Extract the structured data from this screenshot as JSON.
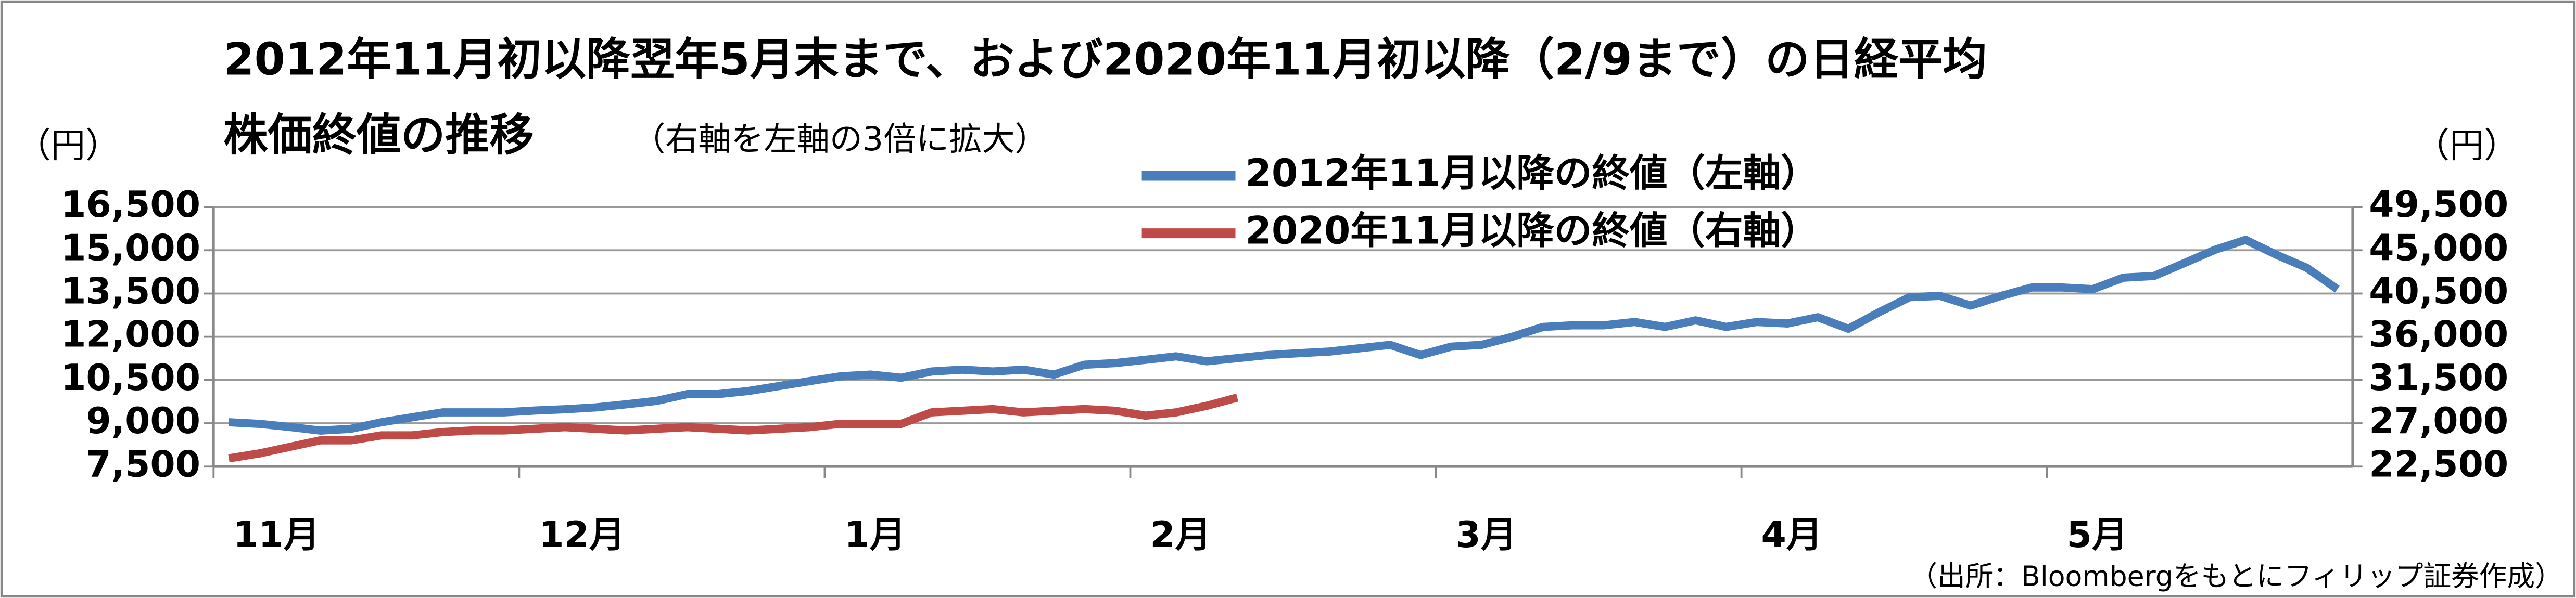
{
  "chart_data": {
    "type": "line",
    "title": [
      "2012年11月初以降翌年5月末まで、および2020年11月初以降（2/9まで）の日経平均",
      "株価終値の推移"
    ],
    "subtitle": "（右軸を左軸の3倍に拡大）",
    "y_unit": "（円）",
    "y2_unit": "（円）",
    "source": "（出所：Bloombergをもとにフィリップ証券作成）",
    "categories": [
      "11月",
      null,
      null,
      null,
      null,
      null,
      null,
      null,
      null,
      null,
      "12月",
      null,
      null,
      null,
      null,
      null,
      null,
      null,
      null,
      null,
      "1月",
      null,
      null,
      null,
      null,
      null,
      null,
      null,
      null,
      null,
      "2月",
      null,
      null,
      null,
      null,
      null,
      null,
      null,
      null,
      null,
      "3月",
      null,
      null,
      null,
      null,
      null,
      null,
      null,
      null,
      null,
      "4月",
      null,
      null,
      null,
      null,
      null,
      null,
      null,
      null,
      null,
      "5月",
      null,
      null,
      null,
      null,
      null,
      null,
      null,
      null,
      null
    ],
    "series": [
      {
        "name": "2012年11月以降の終値（左軸）",
        "color": "#4a7ebb",
        "axis": "y",
        "values": [
          9040,
          8980,
          8870,
          8750,
          8810,
          9040,
          9210,
          9380,
          9380,
          9380,
          9440,
          9490,
          9550,
          9660,
          9780,
          10010,
          10010,
          10120,
          10290,
          10460,
          10630,
          10690,
          10580,
          10800,
          10860,
          10800,
          10860,
          10690,
          11030,
          11090,
          11200,
          11320,
          11150,
          11260,
          11370,
          11430,
          11490,
          11600,
          11720,
          11370,
          11660,
          11720,
          12000,
          12340,
          12400,
          12400,
          12510,
          12340,
          12570,
          12340,
          12510,
          12460,
          12680,
          12280,
          12850,
          13370,
          13420,
          13080,
          13420,
          13710,
          13710,
          13650,
          14050,
          14110,
          14560,
          15020,
          15360,
          14850,
          14390,
          13650
        ]
      },
      {
        "name": "2020年11月以降の終値（右軸）",
        "color": "#be4b48",
        "axis": "y2",
        "values": [
          23350,
          23870,
          24550,
          25230,
          25230,
          25750,
          25750,
          26090,
          26260,
          26260,
          26430,
          26600,
          26430,
          26260,
          26430,
          26600,
          26430,
          26260,
          26430,
          26600,
          26940,
          26940,
          26940,
          28140,
          28310,
          28480,
          28140,
          28310,
          28480,
          28310,
          27800,
          28140,
          28820,
          29680,
          null,
          null,
          null,
          null,
          null,
          null,
          null,
          null,
          null,
          null,
          null,
          null,
          null,
          null,
          null,
          null,
          null,
          null,
          null,
          null,
          null,
          null,
          null,
          null,
          null,
          null,
          null,
          null,
          null,
          null,
          null,
          null,
          null,
          null,
          null,
          null
        ]
      }
    ],
    "ylim": [
      7500,
      16500
    ],
    "yticks": [
      {
        "value": 7500,
        "label": "7,500"
      },
      {
        "value": 9000,
        "label": "9,000"
      },
      {
        "value": 10500,
        "label": "10,500"
      },
      {
        "value": 12000,
        "label": "12,000"
      },
      {
        "value": 13500,
        "label": "13,500"
      },
      {
        "value": 15000,
        "label": "15,000"
      },
      {
        "value": 16500,
        "label": "16,500"
      }
    ],
    "y2lim": [
      22500,
      49500
    ],
    "y2ticks": [
      {
        "value": 22500,
        "label": "22,500"
      },
      {
        "value": 27000,
        "label": "27,000"
      },
      {
        "value": 31500,
        "label": "31,500"
      },
      {
        "value": 36000,
        "label": "36,000"
      },
      {
        "value": 40500,
        "label": "40,500"
      },
      {
        "value": 45000,
        "label": "45,000"
      },
      {
        "value": 49500,
        "label": "49,500"
      }
    ],
    "grid": true
  }
}
